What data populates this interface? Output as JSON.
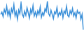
{
  "chart_data": {
    "type": "line",
    "categories": [
      null,
      null,
      null,
      null,
      null,
      null,
      null,
      null,
      null,
      null,
      null,
      null,
      null,
      null,
      null,
      null,
      null,
      null,
      null,
      null,
      null,
      null,
      null,
      null,
      null,
      null,
      null,
      null,
      null,
      null,
      null,
      null,
      null,
      null,
      null,
      null,
      null,
      null,
      null,
      null,
      null,
      null,
      null,
      null,
      null,
      null,
      null,
      null,
      null,
      null,
      null,
      null,
      null,
      null,
      null,
      null,
      null,
      null,
      null,
      null,
      null,
      null,
      null,
      null,
      null,
      null,
      null,
      null,
      null,
      null
    ],
    "values": [
      55,
      62,
      48,
      70,
      58,
      80,
      52,
      66,
      45,
      72,
      60,
      85,
      50,
      63,
      40,
      68,
      57,
      90,
      55,
      47,
      65,
      52,
      75,
      60,
      44,
      70,
      58,
      82,
      50,
      62,
      48,
      66,
      55,
      78,
      46,
      60,
      52,
      72,
      64,
      95,
      58,
      50,
      68,
      55,
      42,
      63,
      57,
      76,
      49,
      61,
      54,
      70,
      45,
      65,
      58,
      80,
      52,
      47,
      66,
      56,
      73,
      50,
      60,
      44,
      67,
      58,
      62,
      40,
      55,
      8
    ],
    "color": "#3a8fd8",
    "ylim": [
      8,
      95
    ],
    "grid": false,
    "tick_labels": false
  }
}
